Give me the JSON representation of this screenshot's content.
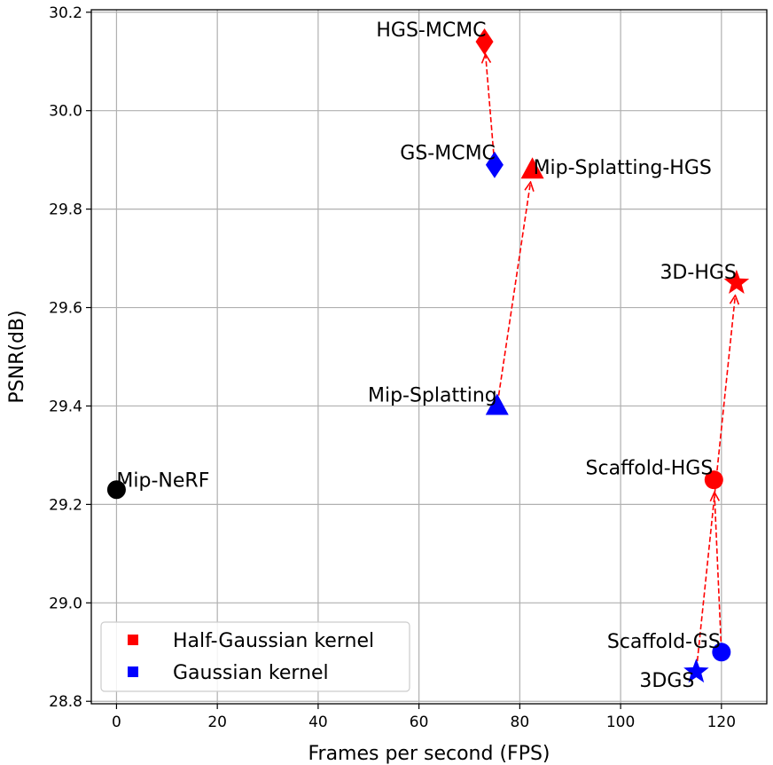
{
  "chart_data": {
    "type": "scatter",
    "xlabel": "Frames per second (FPS)",
    "ylabel": "PSNR(dB)",
    "xlim": [
      -5,
      129
    ],
    "ylim": [
      28.795,
      30.205
    ],
    "xticks": [
      "0",
      "20",
      "40",
      "60",
      "80",
      "100",
      "120"
    ],
    "yticks": [
      "28.8",
      "29.0",
      "29.2",
      "29.4",
      "29.6",
      "29.8",
      "30.0",
      "30.2"
    ],
    "grid": true,
    "colors": {
      "half_gaussian": "#ff0000",
      "gaussian": "#0000ff",
      "baseline": "#000000",
      "arrow": "#ff0000"
    },
    "points": [
      {
        "label": "Mip-NeRF",
        "x": 0,
        "y": 29.23,
        "marker": "circle",
        "group": "baseline"
      },
      {
        "label": "3DGS",
        "x": 115,
        "y": 28.86,
        "marker": "star",
        "group": "gaussian"
      },
      {
        "label": "3D-HGS",
        "x": 123,
        "y": 29.65,
        "marker": "star",
        "group": "half_gaussian"
      },
      {
        "label": "Scaffold-GS",
        "x": 120,
        "y": 28.9,
        "marker": "circle",
        "group": "gaussian"
      },
      {
        "label": "Scaffold-HGS",
        "x": 118.5,
        "y": 29.25,
        "marker": "circle",
        "group": "half_gaussian"
      },
      {
        "label": "Mip-Splatting",
        "x": 75.5,
        "y": 29.4,
        "marker": "triangle",
        "group": "gaussian"
      },
      {
        "label": "Mip-Splatting-HGS",
        "x": 82.5,
        "y": 29.88,
        "marker": "triangle",
        "group": "half_gaussian"
      },
      {
        "label": "GS-MCMC",
        "x": 75,
        "y": 29.89,
        "marker": "diamond",
        "group": "gaussian"
      },
      {
        "label": "HGS-MCMC",
        "x": 73,
        "y": 30.14,
        "marker": "diamond",
        "group": "half_gaussian"
      }
    ],
    "arrows": [
      {
        "from": "3DGS",
        "to": "3D-HGS"
      },
      {
        "from": "Scaffold-GS",
        "to": "Scaffold-HGS"
      },
      {
        "from": "Mip-Splatting",
        "to": "Mip-Splatting-HGS"
      },
      {
        "from": "GS-MCMC",
        "to": "HGS-MCMC"
      }
    ],
    "legend": {
      "position": "lower-left",
      "entries": [
        {
          "label": "Half-Gaussian kernel",
          "group": "half_gaussian"
        },
        {
          "label": "Gaussian kernel",
          "group": "gaussian"
        }
      ]
    }
  }
}
